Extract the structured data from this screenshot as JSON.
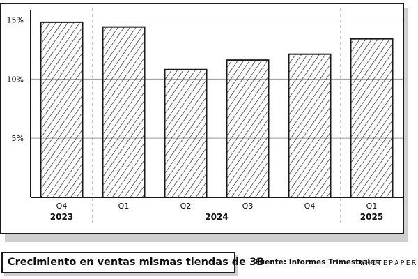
{
  "title": "Crecimiento en ventas mismas tiendas de 3B",
  "source": "Fuente: Informes Trimestrales",
  "brand": "WHITEPAPER",
  "colors": {
    "ink": "#1a1a1a",
    "grid": "#999999",
    "shadow": "#cfcfcf",
    "paper": "#ffffff"
  },
  "chart_data": {
    "type": "bar",
    "categories": [
      "Q4",
      "Q1",
      "Q2",
      "Q3",
      "Q4",
      "Q1"
    ],
    "years": [
      {
        "label": "2023",
        "start": 0,
        "end": 0
      },
      {
        "label": "2024",
        "start": 1,
        "end": 4
      },
      {
        "label": "2025",
        "start": 5,
        "end": 5
      }
    ],
    "values": [
      14.8,
      14.4,
      10.8,
      11.6,
      12.1,
      13.4
    ],
    "yticks": [
      5,
      10,
      15
    ],
    "ytick_labels": [
      "5%",
      "10%",
      "15%"
    ],
    "ylim": [
      0,
      15.5
    ],
    "grid": true,
    "title": "Crecimiento en ventas mismas tiendas de 3B",
    "xlabel": "",
    "ylabel": ""
  }
}
